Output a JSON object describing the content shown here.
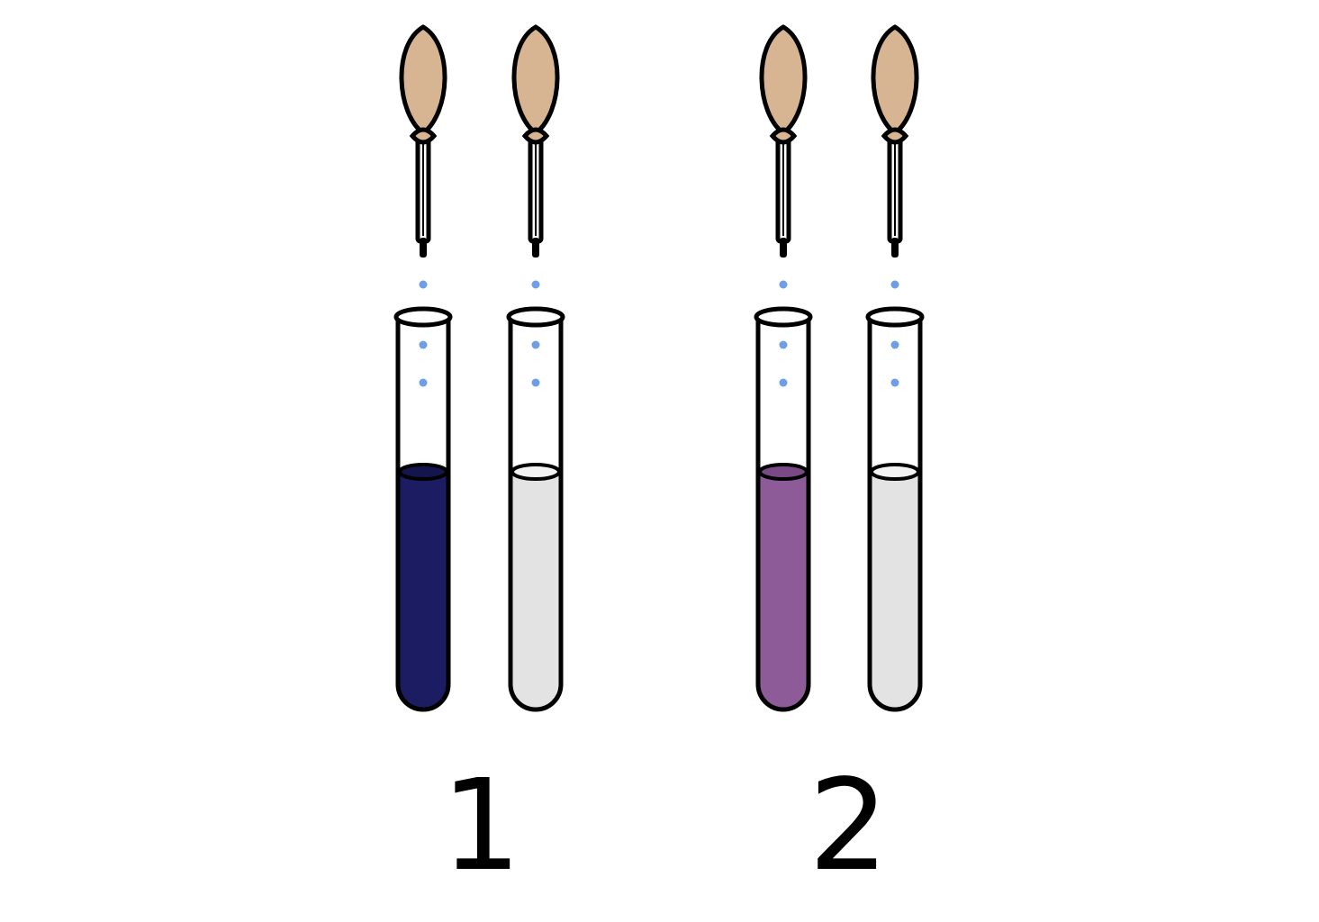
{
  "colors": {
    "bulb": "#d8b592",
    "outline": "#000000",
    "drop": "#6e9ee8",
    "glass": "#ffffff"
  },
  "groups": [
    {
      "label": "1",
      "tubes": [
        {
          "liquid_color": "#1c1c62",
          "liquid_top_color": "#15154d"
        },
        {
          "liquid_color": "#e3e3e3",
          "liquid_top_color": "#f2f2f2"
        }
      ]
    },
    {
      "label": "2",
      "tubes": [
        {
          "liquid_color": "#8d5c98",
          "liquid_top_color": "#7a4a86"
        },
        {
          "liquid_color": "#e3e3e3",
          "liquid_top_color": "#f2f2f2"
        }
      ]
    }
  ]
}
